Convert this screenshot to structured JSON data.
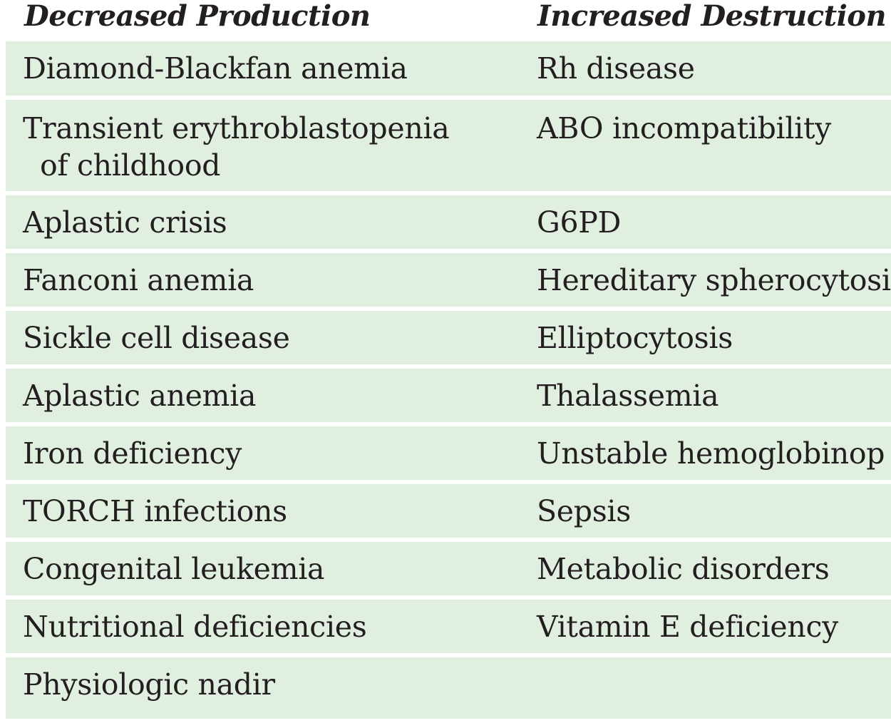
{
  "headers": {
    "left": "Decreased Production",
    "right": "Increased Destruction"
  },
  "rows": [
    {
      "left": "Diamond-Blackfan anemia",
      "right": "Rh disease"
    },
    {
      "left": "Transient erythroblastopenia",
      "left_cont": "of childhood",
      "right": "ABO incompatibility"
    },
    {
      "left": "Aplastic crisis",
      "right": "G6PD"
    },
    {
      "left": "Fanconi anemia",
      "right": "Hereditary spherocytosi"
    },
    {
      "left": "Sickle cell disease",
      "right": "Elliptocytosis"
    },
    {
      "left": "Aplastic anemia",
      "right": "Thalassemia"
    },
    {
      "left": "Iron deficiency",
      "right": "Unstable hemoglobinop"
    },
    {
      "left": "TORCH infections",
      "right": "Sepsis"
    },
    {
      "left": "Congenital leukemia",
      "right": "Metabolic disorders"
    },
    {
      "left": "Nutritional deficiencies",
      "right": "Vitamin E deficiency"
    },
    {
      "left": "Physiologic nadir",
      "right": ""
    }
  ],
  "colors": {
    "row_background": "#e1efe1",
    "text": "#231f20"
  }
}
